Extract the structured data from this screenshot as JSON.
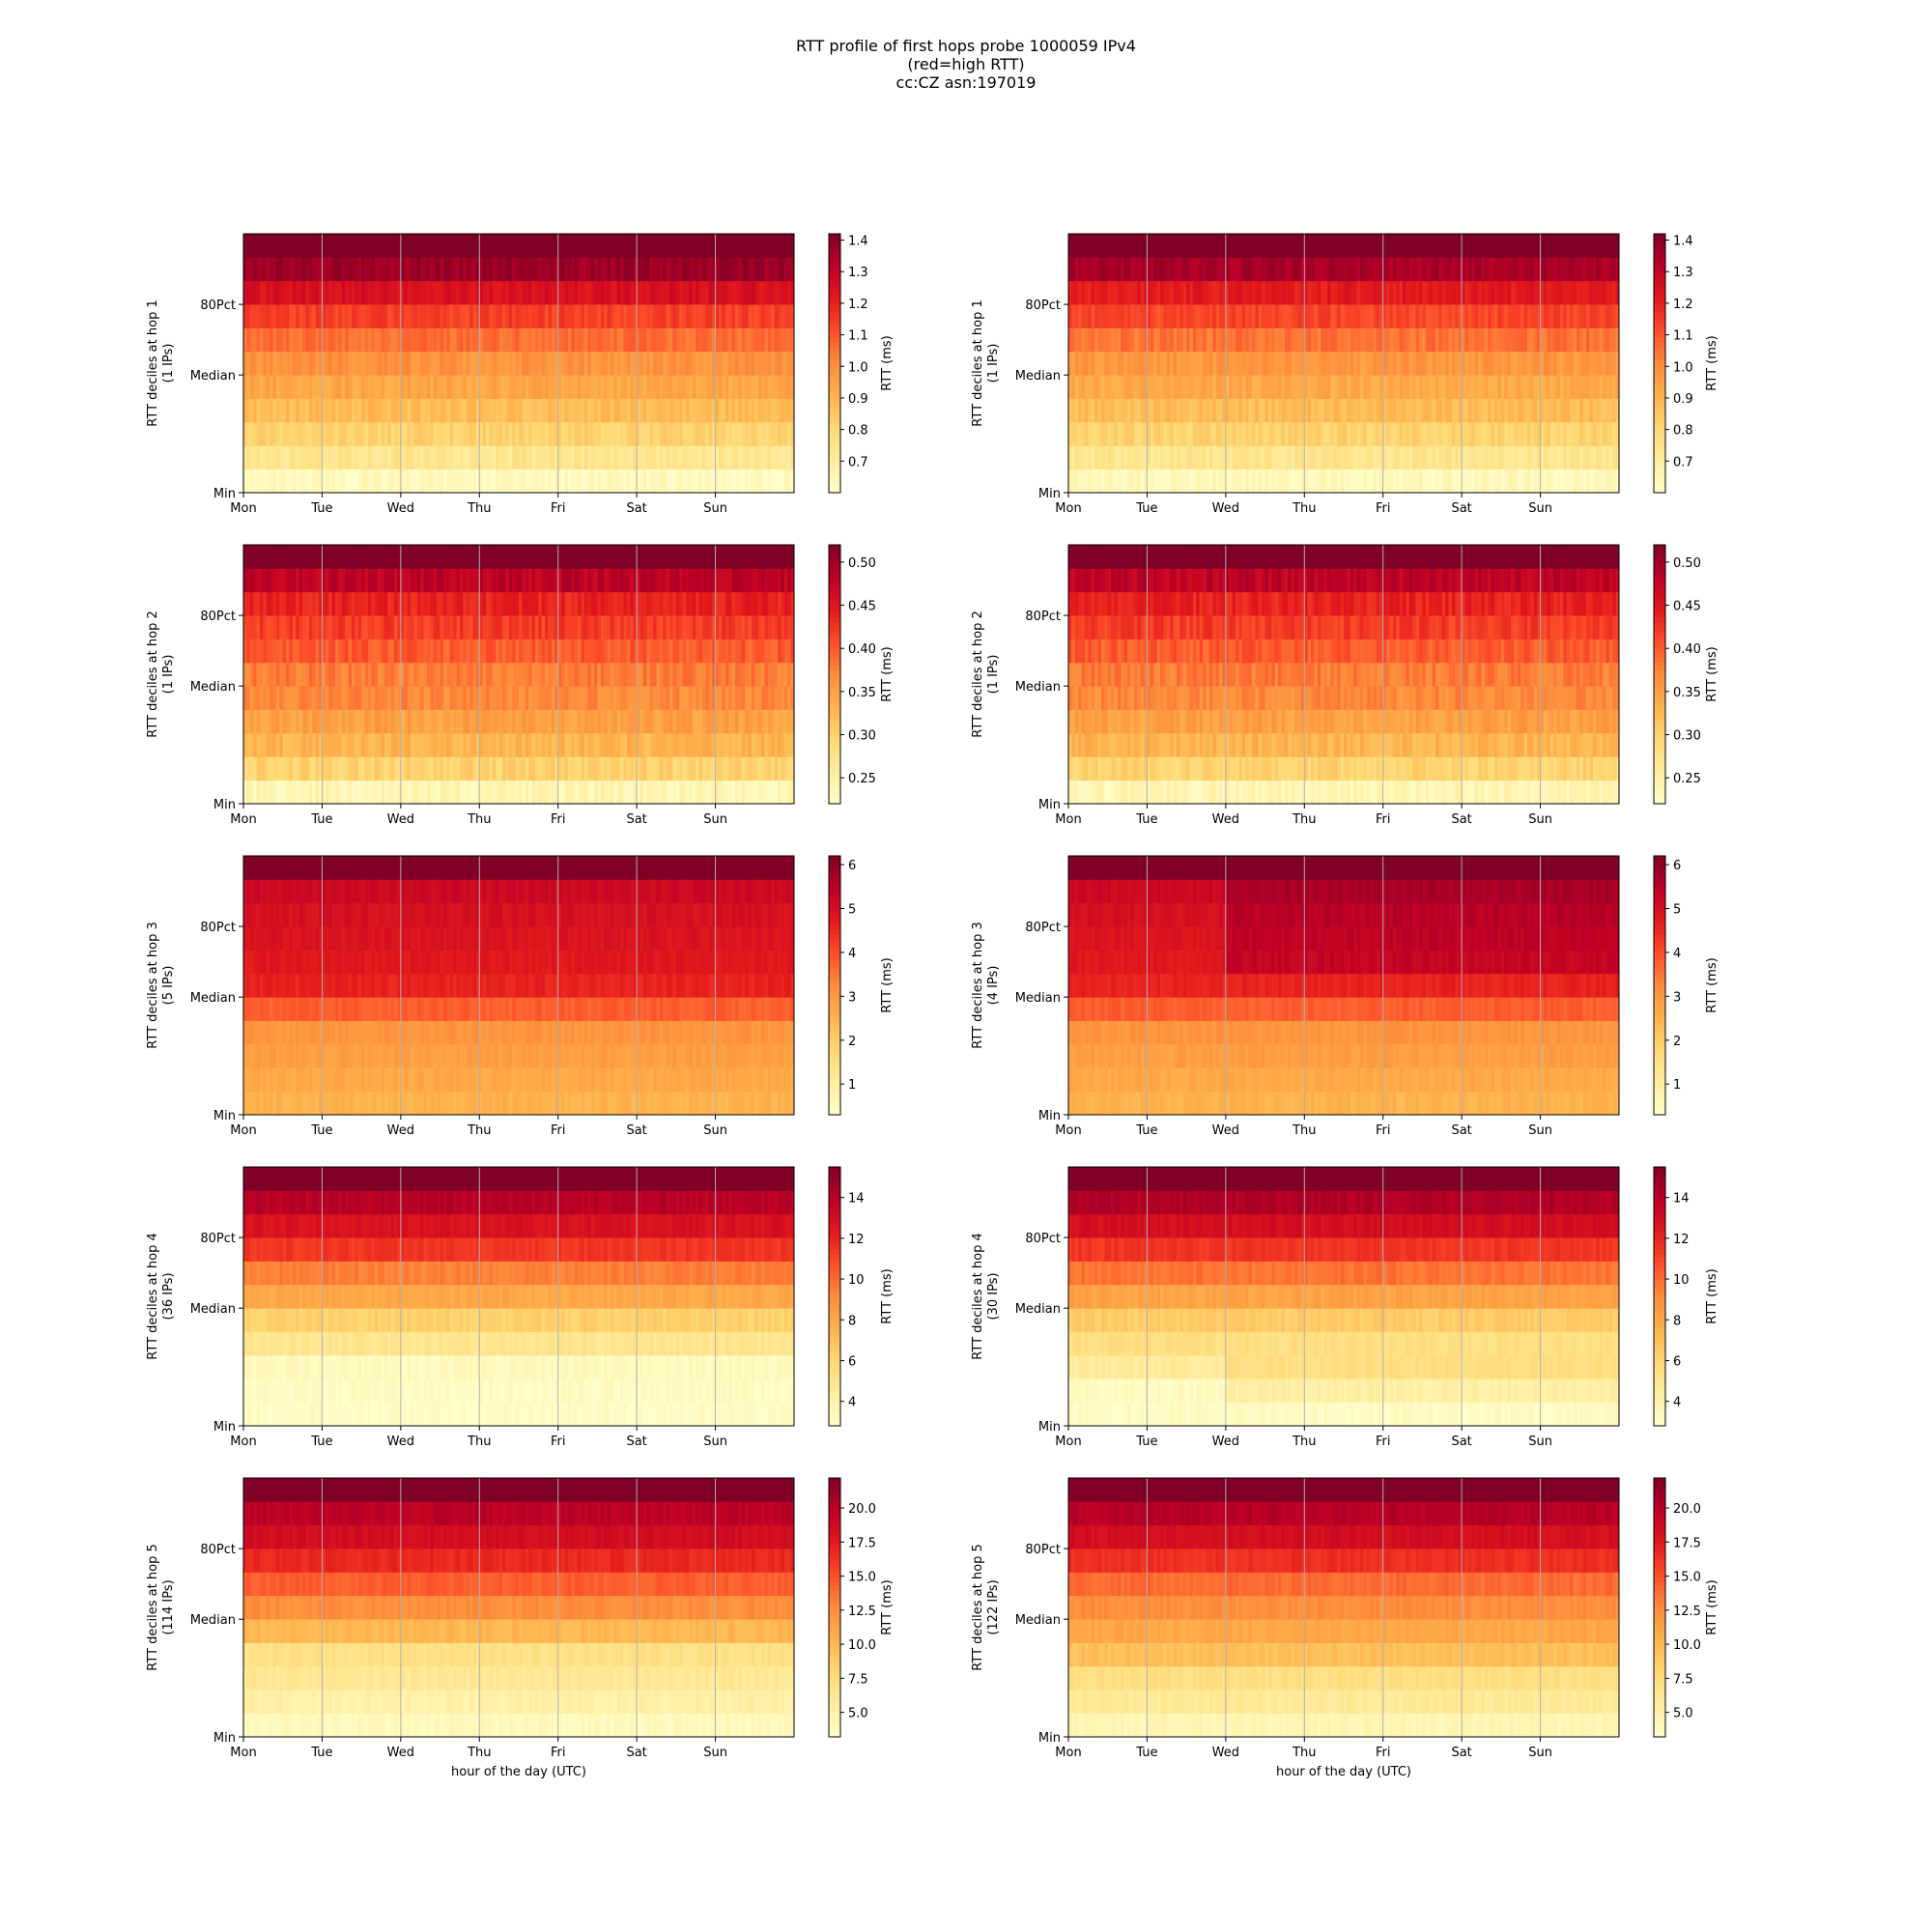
{
  "figure": {
    "title_lines": [
      "RTT profile of first hops probe 1000059 IPv4",
      "(red=high RTT)",
      "cc:CZ asn:197019"
    ]
  },
  "chart_data": [
    {
      "type": "heatmap",
      "hop": 1,
      "ylabel": "RTT deciles at hop 1",
      "ylabel2": "(1 IPs)",
      "xlabel": "",
      "xticks": [
        "Mon",
        "Tue",
        "Wed",
        "Thu",
        "Fri",
        "Sat",
        "Sun"
      ],
      "yticks": [
        "Min",
        "Median",
        "80Pct"
      ],
      "grid_x": true,
      "colorbar_label": "RTT (ms)",
      "colorbar_ticks": [
        0.7,
        0.8,
        0.9,
        1.0,
        1.1,
        1.2,
        1.3,
        1.4
      ],
      "colorbar_format": "1",
      "vmin": 0.6,
      "vmax": 1.42,
      "rows": 11,
      "decile_rtt": [
        0.63,
        0.74,
        0.82,
        0.88,
        0.94,
        0.99,
        1.06,
        1.14,
        1.25,
        1.37,
        1.45
      ],
      "jitter": 0.035,
      "events": []
    },
    {
      "type": "heatmap",
      "hop": 1,
      "ylabel": "RTT deciles at hop 1",
      "ylabel2": "(1 IPs)",
      "xlabel": "",
      "xticks": [
        "Mon",
        "Tue",
        "Wed",
        "Thu",
        "Fri",
        "Sat",
        "Sun"
      ],
      "yticks": [
        "Min",
        "Median",
        "80Pct"
      ],
      "grid_x": true,
      "colorbar_label": "RTT (ms)",
      "colorbar_ticks": [
        0.7,
        0.8,
        0.9,
        1.0,
        1.1,
        1.2,
        1.3,
        1.4
      ],
      "colorbar_format": "1",
      "vmin": 0.6,
      "vmax": 1.42,
      "rows": 11,
      "decile_rtt": [
        0.64,
        0.74,
        0.82,
        0.88,
        0.93,
        0.98,
        1.05,
        1.13,
        1.22,
        1.35,
        1.45
      ],
      "jitter": 0.035,
      "events": []
    },
    {
      "type": "heatmap",
      "hop": 2,
      "ylabel": "RTT deciles at hop 2",
      "ylabel2": "(1 IPs)",
      "xlabel": "",
      "xticks": [
        "Mon",
        "Tue",
        "Wed",
        "Thu",
        "Fri",
        "Sat",
        "Sun"
      ],
      "yticks": [
        "Min",
        "Median",
        "80Pct"
      ],
      "grid_x": true,
      "colorbar_label": "RTT (ms)",
      "colorbar_ticks": [
        0.25,
        0.3,
        0.35,
        0.4,
        0.45,
        0.5
      ],
      "colorbar_format": "2",
      "vmin": 0.22,
      "vmax": 0.52,
      "rows": 11,
      "decile_rtt": [
        0.24,
        0.3,
        0.33,
        0.35,
        0.37,
        0.38,
        0.4,
        0.42,
        0.44,
        0.48,
        0.53
      ],
      "jitter": 0.015,
      "events": []
    },
    {
      "type": "heatmap",
      "hop": 2,
      "ylabel": "RTT deciles at hop 2",
      "ylabel2": "(1 IPs)",
      "xlabel": "",
      "xticks": [
        "Mon",
        "Tue",
        "Wed",
        "Thu",
        "Fri",
        "Sat",
        "Sun"
      ],
      "yticks": [
        "Min",
        "Median",
        "80Pct"
      ],
      "grid_x": true,
      "colorbar_label": "RTT (ms)",
      "colorbar_ticks": [
        0.25,
        0.3,
        0.35,
        0.4,
        0.45,
        0.5
      ],
      "colorbar_format": "2",
      "vmin": 0.22,
      "vmax": 0.52,
      "rows": 11,
      "decile_rtt": [
        0.24,
        0.3,
        0.33,
        0.35,
        0.37,
        0.38,
        0.4,
        0.42,
        0.44,
        0.48,
        0.53
      ],
      "jitter": 0.015,
      "events": []
    },
    {
      "type": "heatmap",
      "hop": 3,
      "ylabel": "RTT deciles at hop 3",
      "ylabel2": "(5 IPs)",
      "xlabel": "",
      "xticks": [
        "Mon",
        "Tue",
        "Wed",
        "Thu",
        "Fri",
        "Sat",
        "Sun"
      ],
      "yticks": [
        "Min",
        "Median",
        "80Pct"
      ],
      "grid_x": true,
      "colorbar_label": "RTT (ms)",
      "colorbar_ticks": [
        1,
        2,
        3,
        4,
        5,
        6
      ],
      "colorbar_format": "0",
      "vmin": 0.3,
      "vmax": 6.2,
      "rows": 11,
      "decile_rtt": [
        2.5,
        2.7,
        2.9,
        3.1,
        3.8,
        4.6,
        4.8,
        4.9,
        5.0,
        5.2,
        6.5
      ],
      "jitter": 0.15,
      "events": []
    },
    {
      "type": "heatmap",
      "hop": 3,
      "ylabel": "RTT deciles at hop 3",
      "ylabel2": "(4 IPs)",
      "xlabel": "",
      "xticks": [
        "Mon",
        "Tue",
        "Wed",
        "Thu",
        "Fri",
        "Sat",
        "Sun"
      ],
      "yticks": [
        "Min",
        "Median",
        "80Pct"
      ],
      "grid_x": true,
      "colorbar_label": "RTT (ms)",
      "colorbar_ticks": [
        1,
        2,
        3,
        4,
        5,
        6
      ],
      "colorbar_format": "0",
      "vmin": 0.3,
      "vmax": 6.2,
      "rows": 11,
      "decile_rtt": [
        2.5,
        2.7,
        2.9,
        3.1,
        3.8,
        4.6,
        4.8,
        4.9,
        5.0,
        5.2,
        6.5
      ],
      "jitter": 0.15,
      "events": [
        {
          "from_day": 2.0,
          "rows_from": 6,
          "delta": 0.5
        }
      ]
    },
    {
      "type": "heatmap",
      "hop": 4,
      "ylabel": "RTT deciles at hop 4",
      "ylabel2": "(36 IPs)",
      "xlabel": "",
      "xticks": [
        "Mon",
        "Tue",
        "Wed",
        "Thu",
        "Fri",
        "Sat",
        "Sun"
      ],
      "yticks": [
        "Min",
        "Median",
        "80Pct"
      ],
      "grid_x": true,
      "colorbar_label": "RTT (ms)",
      "colorbar_ticks": [
        4,
        6,
        8,
        10,
        12,
        14
      ],
      "colorbar_format": "0",
      "vmin": 2.8,
      "vmax": 15.5,
      "rows": 11,
      "decile_rtt": [
        3.0,
        3.1,
        3.3,
        5.0,
        6.3,
        8.0,
        9.5,
        11.5,
        12.8,
        14.0,
        16.0
      ],
      "jitter": 0.35,
      "events": []
    },
    {
      "type": "heatmap",
      "hop": 4,
      "ylabel": "RTT deciles at hop 4",
      "ylabel2": "(30 IPs)",
      "xlabel": "",
      "xticks": [
        "Mon",
        "Tue",
        "Wed",
        "Thu",
        "Fri",
        "Sat",
        "Sun"
      ],
      "yticks": [
        "Min",
        "Median",
        "80Pct"
      ],
      "grid_x": true,
      "colorbar_label": "RTT (ms)",
      "colorbar_ticks": [
        4,
        6,
        8,
        10,
        12,
        14
      ],
      "colorbar_format": "0",
      "vmin": 2.8,
      "vmax": 15.5,
      "rows": 11,
      "decile_rtt": [
        3.1,
        3.2,
        4.5,
        5.5,
        6.5,
        8.2,
        9.8,
        11.5,
        13.0,
        14.2,
        16.0
      ],
      "jitter": 0.35,
      "events": [
        {
          "from_day": 2.0,
          "rows_from": 1,
          "rows_to": 2,
          "delta": 1.0
        }
      ]
    },
    {
      "type": "heatmap",
      "hop": 5,
      "ylabel": "RTT deciles at hop 5",
      "ylabel2": "(114 IPs)",
      "xlabel": "hour of the day (UTC)",
      "xticks": [
        "Mon",
        "Tue",
        "Wed",
        "Thu",
        "Fri",
        "Sat",
        "Sun"
      ],
      "yticks": [
        "Min",
        "Median",
        "80Pct"
      ],
      "grid_x": true,
      "colorbar_label": "RTT (ms)",
      "colorbar_ticks": [
        5.0,
        7.5,
        10.0,
        12.5,
        15.0,
        17.5,
        20.0
      ],
      "colorbar_format": "1",
      "vmin": 3.2,
      "vmax": 22.2,
      "rows": 11,
      "decile_rtt": [
        4.0,
        5.2,
        6.2,
        7.0,
        10.0,
        12.5,
        14.5,
        16.8,
        18.5,
        19.8,
        23.0
      ],
      "jitter": 0.5,
      "events": []
    },
    {
      "type": "heatmap",
      "hop": 5,
      "ylabel": "RTT deciles at hop 5",
      "ylabel2": "(122 IPs)",
      "xlabel": "hour of the day (UTC)",
      "xticks": [
        "Mon",
        "Tue",
        "Wed",
        "Thu",
        "Fri",
        "Sat",
        "Sun"
      ],
      "yticks": [
        "Min",
        "Median",
        "80Pct"
      ],
      "grid_x": true,
      "colorbar_label": "RTT (ms)",
      "colorbar_ticks": [
        5.0,
        7.5,
        10.0,
        12.5,
        15.0,
        17.5,
        20.0
      ],
      "colorbar_format": "1",
      "vmin": 3.2,
      "vmax": 22.2,
      "rows": 11,
      "decile_rtt": [
        4.5,
        6.0,
        7.2,
        9.5,
        11.0,
        12.5,
        14.0,
        16.5,
        18.5,
        20.0,
        23.0
      ],
      "jitter": 0.5,
      "events": []
    }
  ]
}
